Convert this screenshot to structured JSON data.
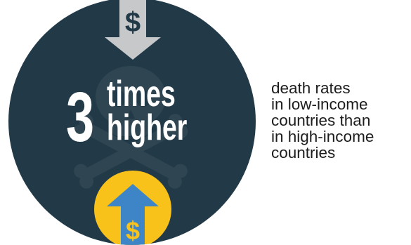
{
  "infographic": {
    "stat": {
      "number": "3",
      "word_top": "times",
      "word_bottom": "higher"
    },
    "down_arrow_symbol": "$",
    "up_arrow_symbol": "$",
    "background_icon": "skull-crossbones-icon",
    "description_lines": [
      "death rates",
      "in low-income",
      "countries than",
      "in high-income",
      "countries"
    ],
    "colors": {
      "circle": "#223a48",
      "skull": "#2f4552",
      "stat_text": "#ffffff",
      "down_arrow": "#c7c8ca",
      "down_arrow_symbol": "#223a48",
      "coin": "#f9c21b",
      "up_arrow": "#3d85c6",
      "up_arrow_symbol": "#f9c21b",
      "description_text": "#1d1d1d"
    }
  }
}
